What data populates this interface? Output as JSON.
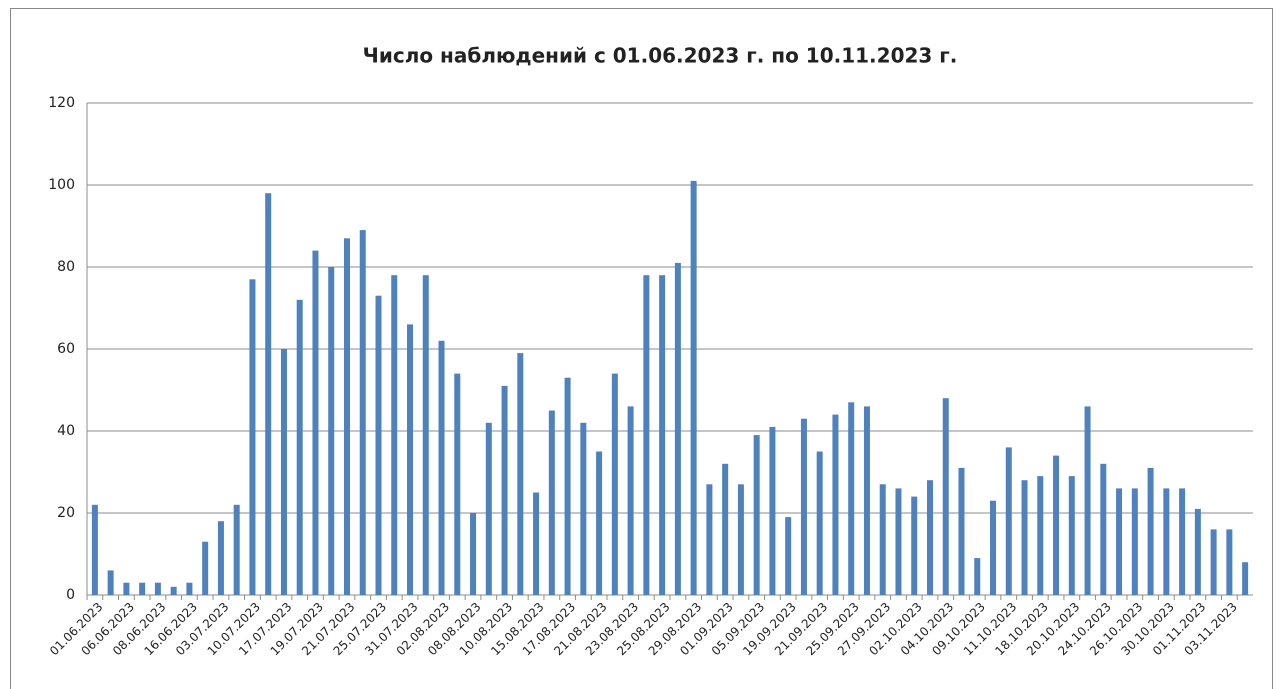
{
  "chart_data": {
    "type": "bar",
    "title": "Число наблюдений с 01.06.2023 г. по 10.11.2023 г.",
    "categories": [
      "01.06.2023",
      null,
      "06.06.2023",
      null,
      "08.06.2023",
      null,
      "16.06.2023",
      null,
      "03.07.2023",
      null,
      "10.07.2023",
      null,
      "17.07.2023",
      null,
      "19.07.2023",
      null,
      "21.07.2023",
      null,
      "25.07.2023",
      null,
      "31.07.2023",
      null,
      "02.08.2023",
      null,
      "08.08.2023",
      null,
      "10.08.2023",
      null,
      "15.08.2023",
      null,
      "17.08.2023",
      null,
      "21.08.2023",
      null,
      "23.08.2023",
      null,
      "25.08.2023",
      null,
      "29.08.2023",
      null,
      "01.09.2023",
      null,
      "05.09.2023",
      null,
      "19.09.2023",
      null,
      "21.09.2023",
      null,
      "25.09.2023",
      null,
      "27.09.2023",
      null,
      "02.10.2023",
      null,
      "04.10.2023",
      null,
      "09.10.2023",
      null,
      "11.10.2023",
      null,
      "18.10.2023",
      null,
      "20.10.2023",
      null,
      "24.10.2023",
      null,
      "26.10.2023",
      null,
      "30.10.2023",
      null,
      "01.11.2023",
      null,
      "03.11.2023",
      null
    ],
    "values": [
      22,
      6,
      3,
      3,
      3,
      2,
      3,
      13,
      18,
      22,
      77,
      98,
      60,
      72,
      84,
      80,
      87,
      89,
      73,
      78,
      66,
      78,
      62,
      54,
      20,
      42,
      51,
      59,
      25,
      45,
      53,
      42,
      35,
      54,
      46,
      78,
      78,
      81,
      101,
      27,
      32,
      27,
      39,
      41,
      19,
      43,
      35,
      44,
      47,
      46,
      27,
      26,
      24,
      28,
      48,
      31,
      9,
      23,
      36,
      28,
      29,
      34,
      29,
      46,
      32,
      26,
      26,
      31,
      26,
      26,
      21,
      16,
      16,
      8
    ],
    "color": "#4f81bd",
    "ylim": [
      0,
      120
    ],
    "yticks": [
      0,
      20,
      40,
      60,
      80,
      100,
      120
    ],
    "grid": true
  }
}
